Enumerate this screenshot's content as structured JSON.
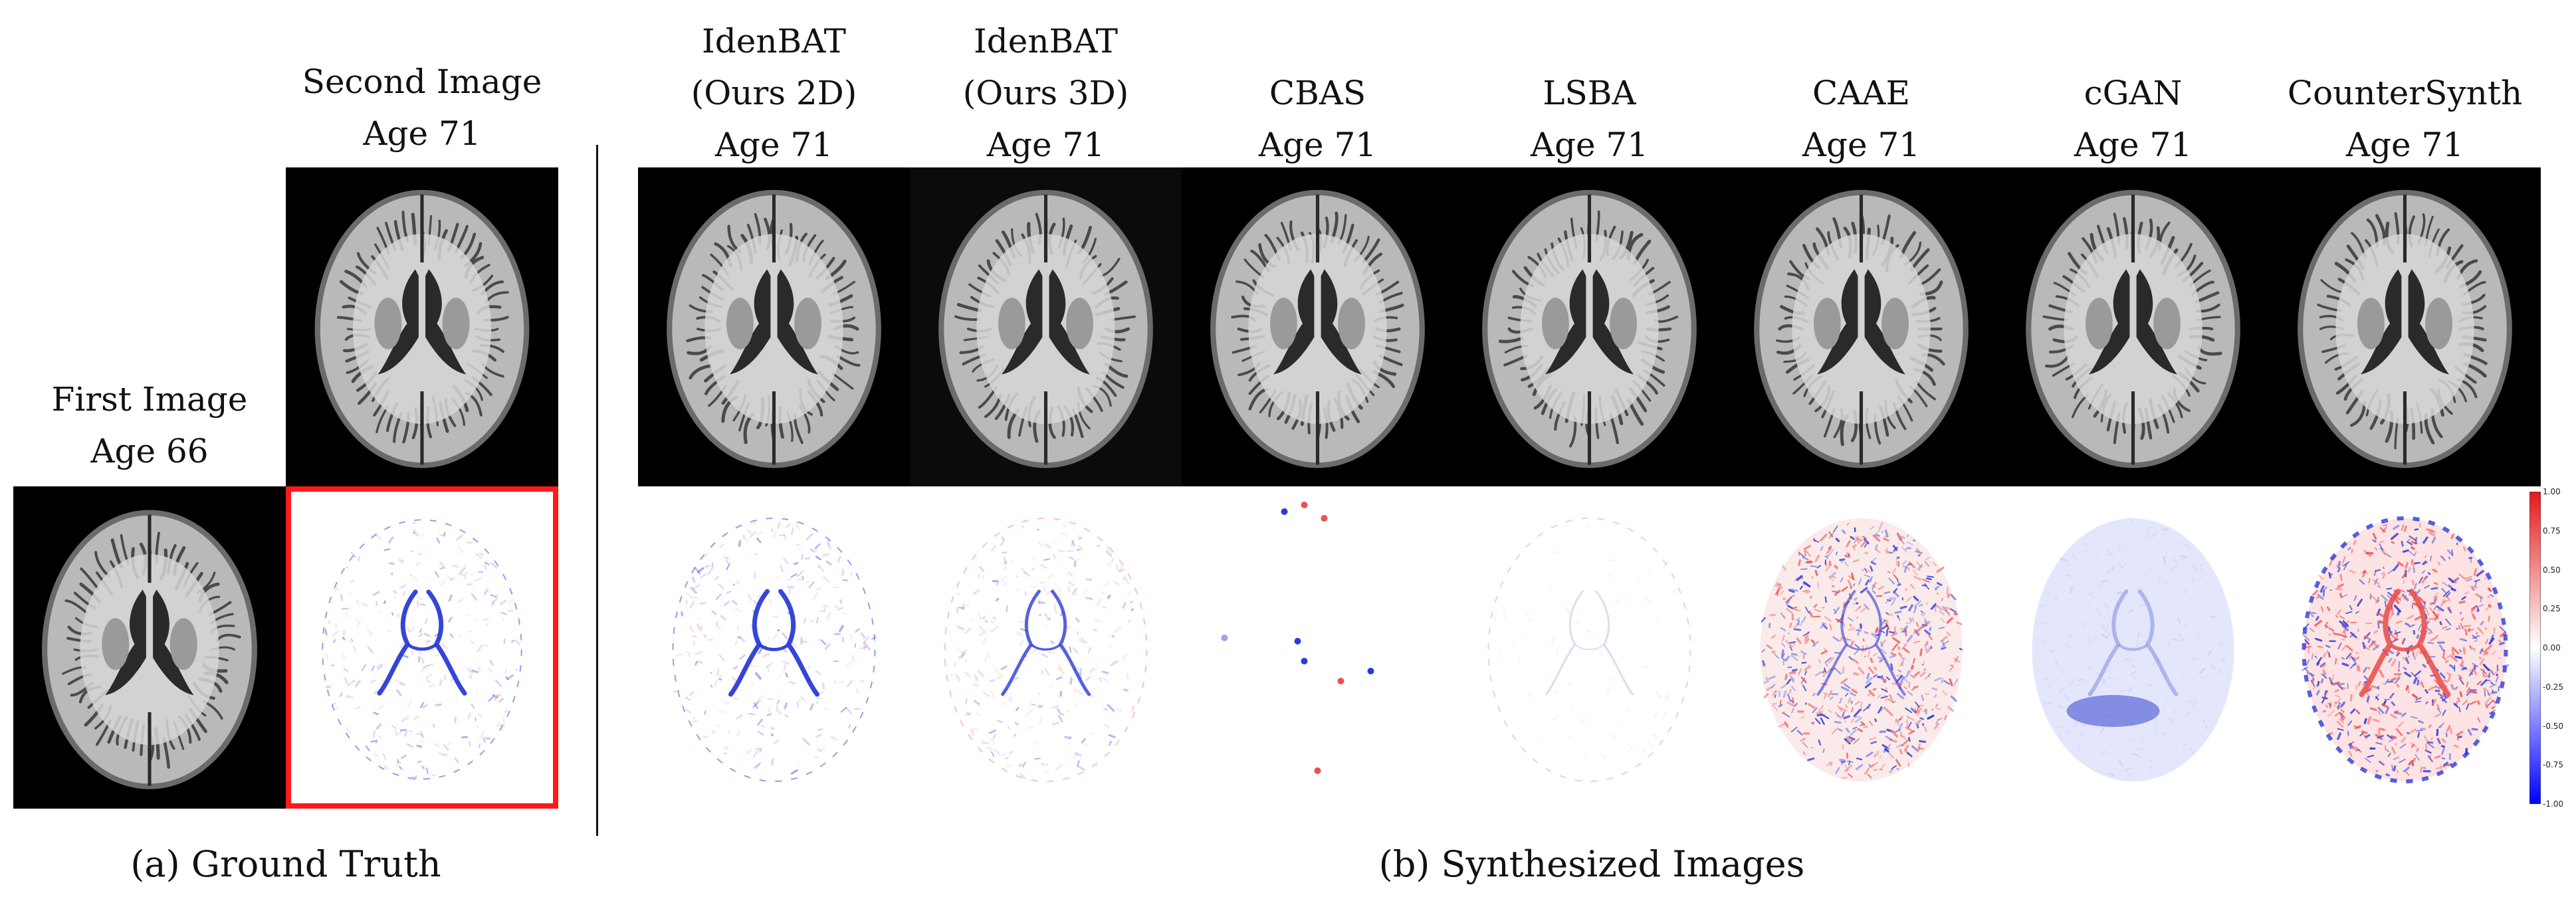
{
  "ground_truth": {
    "first": {
      "title": "First Image",
      "age": "Age 66"
    },
    "second": {
      "title": "Second Image",
      "age": "Age 71"
    },
    "caption": "(a) Ground Truth"
  },
  "synthesized": {
    "caption": "(b) Synthesized Images",
    "methods": [
      {
        "name_line1": "IdenBAT",
        "name_line2": "(Ours 2D)",
        "age": "Age 71",
        "diff_style": "ventricle-strong"
      },
      {
        "name_line1": "IdenBAT",
        "name_line2": "(Ours 3D)",
        "age": "Age 71",
        "diff_style": "ventricle-medium"
      },
      {
        "name_line1": "",
        "name_line2": "CBAS",
        "age": "Age 71",
        "diff_style": "sparse-dots"
      },
      {
        "name_line1": "",
        "name_line2": "LSBA",
        "age": "Age 71",
        "diff_style": "faint"
      },
      {
        "name_line1": "",
        "name_line2": "CAAE",
        "age": "Age 71",
        "diff_style": "red-blue-dense"
      },
      {
        "name_line1": "",
        "name_line2": "cGAN",
        "age": "Age 71",
        "diff_style": "blue-wash"
      },
      {
        "name_line1": "",
        "name_line2": "CounterSynth",
        "age": "Age 71",
        "diff_style": "red-blue-strong"
      }
    ]
  },
  "colorbar": {
    "ticks": [
      "1.00",
      "0.75",
      "0.50",
      "0.25",
      "0.00",
      "-0.25",
      "-0.50",
      "-0.75",
      "-1.00"
    ],
    "max_color": "#e41a1c",
    "mid_color": "#ffffff",
    "min_color": "#0000ff"
  },
  "highlight_color": "#ff1a1a"
}
